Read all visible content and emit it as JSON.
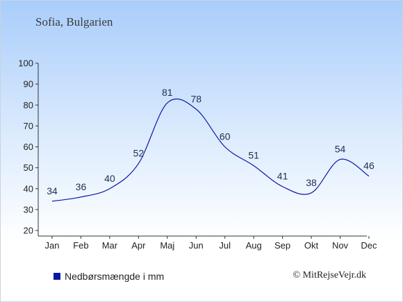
{
  "title": "Sofia, Bulgarien",
  "legend": {
    "label": "Nedbørsmængde i mm",
    "color": "#0a16a8"
  },
  "credit": "© MitRejseVejr.dk",
  "chart_data": {
    "type": "line",
    "categories": [
      "Jan",
      "Feb",
      "Mar",
      "Apr",
      "Maj",
      "Jun",
      "Jul",
      "Aug",
      "Sep",
      "Okt",
      "Nov",
      "Dec"
    ],
    "series": [
      {
        "name": "Nedbørsmængde i mm",
        "values": [
          34,
          36,
          40,
          52,
          81,
          78,
          60,
          51,
          41,
          38,
          54,
          46
        ],
        "color": "#0a16a8"
      }
    ],
    "ylim": [
      20,
      100
    ],
    "yticks": [
      20,
      30,
      40,
      50,
      60,
      70,
      80,
      90,
      100
    ],
    "grid": false,
    "legend_position": "bottom-left"
  }
}
